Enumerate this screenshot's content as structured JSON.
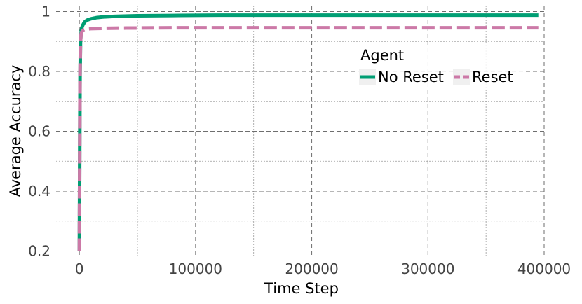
{
  "chart_data": {
    "type": "line",
    "title": "",
    "xlabel": "Time Step",
    "ylabel": "Average Accuracy",
    "xlim": [
      -20000,
      400000
    ],
    "ylim": [
      0.18,
      1.02
    ],
    "x_ticks": [
      0,
      100000,
      200000,
      300000,
      400000
    ],
    "x_tick_labels": [
      "0",
      "100000",
      "200000",
      "300000",
      "400000"
    ],
    "y_ticks": [
      0.2,
      0.4,
      0.6,
      0.8,
      1.0
    ],
    "y_tick_labels": [
      "0.2",
      "0.4",
      "0.6",
      "0.8",
      "1"
    ],
    "grid": true,
    "legend": {
      "title": "Agent",
      "placement": "upper-right"
    },
    "series": [
      {
        "name": "No Reset",
        "color": "#009e73",
        "dash": "solid",
        "x": [
          0,
          300,
          600,
          1000,
          1500,
          2000,
          3000,
          4000,
          5000,
          7000,
          10000,
          15000,
          20000,
          30000,
          50000,
          80000,
          120000,
          200000,
          300000,
          395000
        ],
        "y": [
          0.2,
          0.5,
          0.78,
          0.9,
          0.93,
          0.945,
          0.955,
          0.962,
          0.967,
          0.972,
          0.976,
          0.98,
          0.982,
          0.984,
          0.986,
          0.987,
          0.988,
          0.988,
          0.988,
          0.988
        ]
      },
      {
        "name": "Reset",
        "color": "#cc79a7",
        "dash": "dashed",
        "x": [
          0,
          300,
          600,
          1000,
          1500,
          2000,
          3000,
          4000,
          6000,
          10000,
          20000,
          40000,
          80000,
          150000,
          250000,
          395000
        ],
        "y": [
          0.2,
          0.5,
          0.8,
          0.9,
          0.925,
          0.932,
          0.937,
          0.94,
          0.942,
          0.943,
          0.944,
          0.945,
          0.946,
          0.946,
          0.946,
          0.946
        ]
      }
    ]
  }
}
